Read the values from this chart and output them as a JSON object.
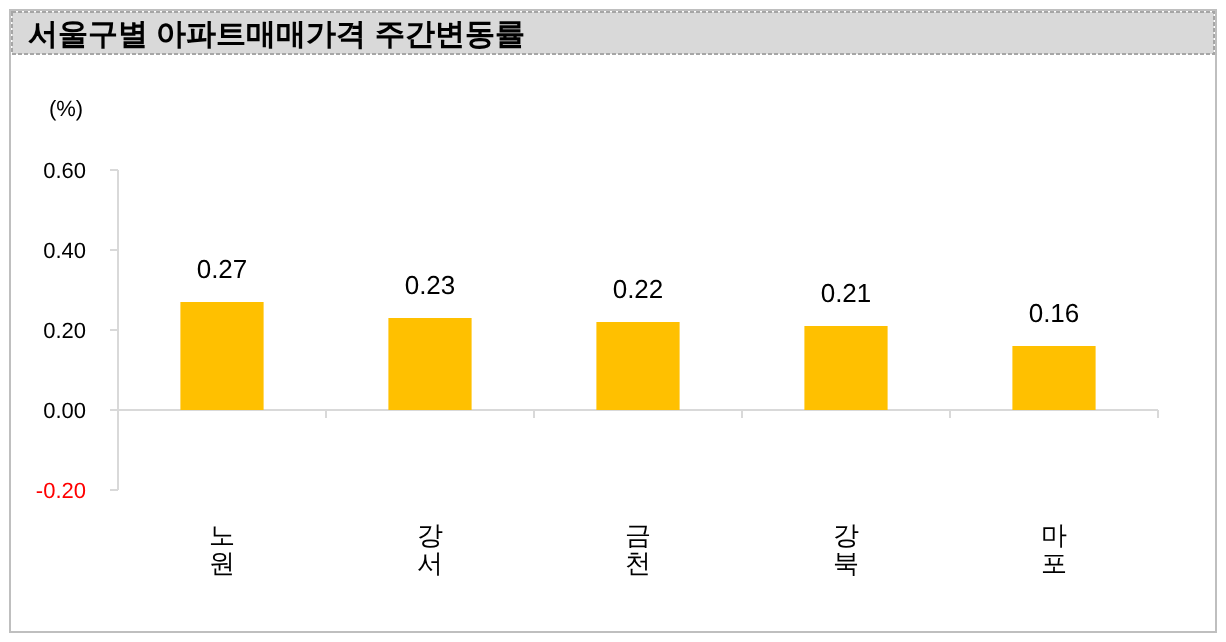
{
  "chart_data": {
    "type": "bar",
    "title": "서울구별 아파트매매가격 주간변동률",
    "ylabel": "(%)",
    "categories": [
      "노원",
      "강서",
      "금천",
      "강북",
      "마포"
    ],
    "series": [
      {
        "color": "#ffc000",
        "values": [
          0.27,
          0.23,
          0.22,
          0.21,
          0.16
        ]
      }
    ],
    "ylim": [
      -0.2,
      0.6
    ],
    "yticks": [
      {
        "value": -0.2,
        "label": "-0.20"
      },
      {
        "value": 0,
        "label": "0.00"
      },
      {
        "value": 0.2,
        "label": "0.20"
      },
      {
        "value": 0.4,
        "label": "0.40"
      },
      {
        "value": 0.6,
        "label": "0.60"
      }
    ],
    "data_labels": true
  }
}
